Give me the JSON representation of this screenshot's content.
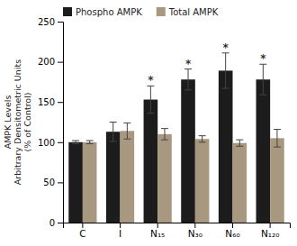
{
  "chart_data": {
    "type": "bar",
    "categories": [
      "C",
      "I",
      "N₁₅",
      "N₃₀",
      "N₆₀",
      "N₁₂₀"
    ],
    "series": [
      {
        "name": "Phospho AMPK",
        "color": "#1c1c1c",
        "values": [
          100,
          113,
          153,
          178,
          189,
          178
        ],
        "errors": [
          2,
          12,
          17,
          13,
          22,
          19
        ],
        "annotations": [
          null,
          null,
          "*",
          "*",
          "*",
          "*"
        ]
      },
      {
        "name": "Total AMPK",
        "color": "#a89880",
        "values": [
          100,
          114,
          110,
          104,
          99,
          105
        ],
        "errors": [
          2,
          10,
          7,
          4,
          4,
          11
        ]
      }
    ],
    "y_label": [
      "AMPK Levels",
      "Arbitrary Densitometric Units",
      "(% of Control)"
    ],
    "ylim": [
      0,
      250
    ],
    "yticks": [
      0,
      50,
      100,
      150,
      200,
      250
    ],
    "grid": false,
    "legend": "top"
  }
}
